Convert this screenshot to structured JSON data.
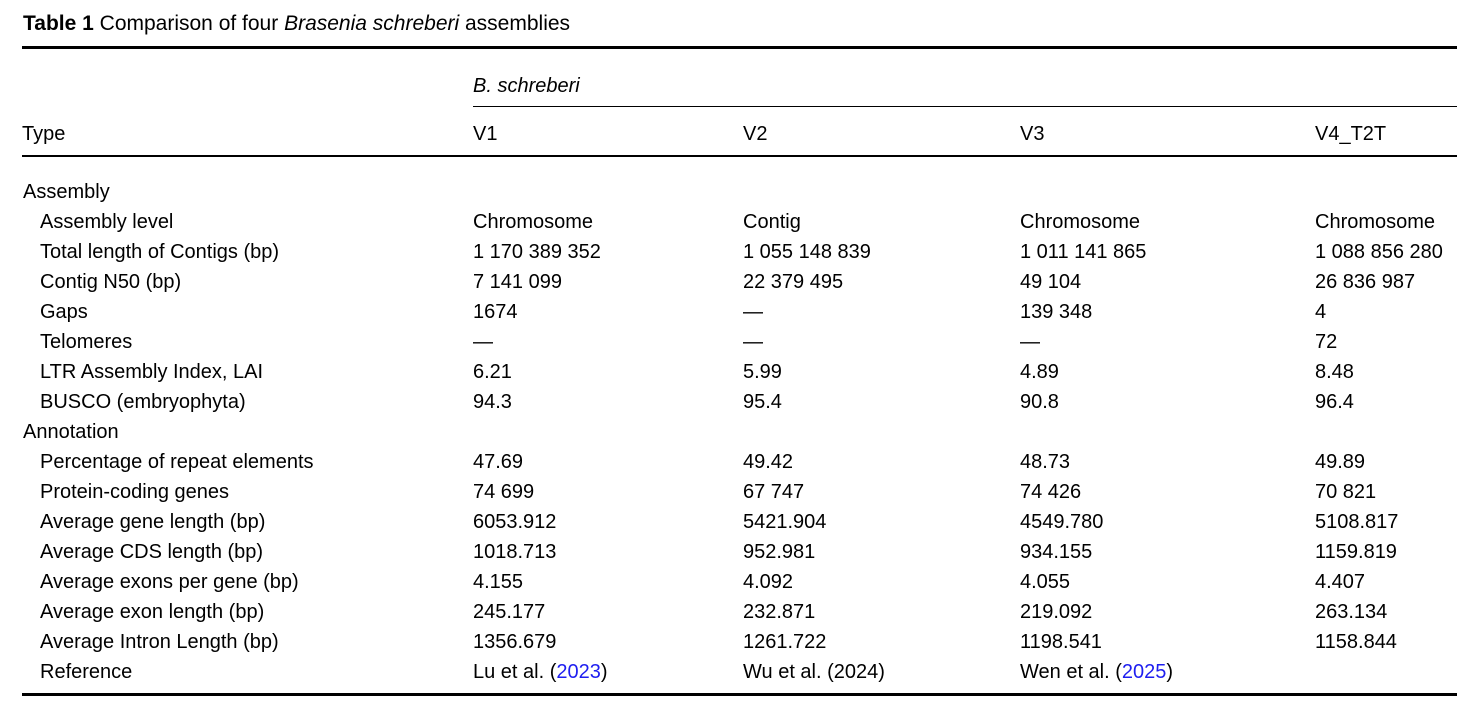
{
  "caption": {
    "label": "Table 1",
    "text_before_species": " Comparison of four ",
    "species": "Brasenia schreberi",
    "text_after_species": " assemblies"
  },
  "table": {
    "spanner": "B. schreberi",
    "columns": [
      "Type",
      "V1",
      "V2",
      "V3",
      "V4_T2T"
    ],
    "rows": [
      {
        "type": "section",
        "label": "Assembly"
      },
      {
        "type": "data",
        "label": "Assembly level",
        "values": [
          "Chromosome",
          "Contig",
          "Chromosome",
          "Chromosome"
        ]
      },
      {
        "type": "data",
        "label": "Total length of Contigs (bp)",
        "values": [
          "1 170 389 352",
          "1 055 148 839",
          "1 011 141 865",
          "1 088 856 280"
        ]
      },
      {
        "type": "data",
        "label": "Contig N50 (bp)",
        "values": [
          "7 141 099",
          "22 379 495",
          "49 104",
          "26 836 987"
        ]
      },
      {
        "type": "data",
        "label": "Gaps",
        "values": [
          "1674",
          "—",
          "139 348",
          "4"
        ]
      },
      {
        "type": "data",
        "label": "Telomeres",
        "values": [
          "—",
          "—",
          "—",
          "72"
        ]
      },
      {
        "type": "data",
        "label": "LTR Assembly Index, LAI",
        "values": [
          "6.21",
          "5.99",
          "4.89",
          "8.48"
        ]
      },
      {
        "type": "data",
        "label": "BUSCO (embryophyta)",
        "values": [
          "94.3",
          "95.4",
          "90.8",
          "96.4"
        ]
      },
      {
        "type": "section",
        "label": "Annotation"
      },
      {
        "type": "data",
        "label": "Percentage of repeat elements",
        "values": [
          "47.69",
          "49.42",
          "48.73",
          "49.89"
        ]
      },
      {
        "type": "data",
        "label": "Protein-coding genes",
        "values": [
          "74 699",
          "67 747",
          "74 426",
          "70 821"
        ]
      },
      {
        "type": "data",
        "label": "Average gene length (bp)",
        "values": [
          "6053.912",
          "5421.904",
          "4549.780",
          "5108.817"
        ]
      },
      {
        "type": "data",
        "label": "Average CDS length (bp)",
        "values": [
          "1018.713",
          "952.981",
          "934.155",
          "1159.819"
        ]
      },
      {
        "type": "data",
        "label": "Average exons per gene (bp)",
        "values": [
          "4.155",
          "4.092",
          "4.055",
          "4.407"
        ]
      },
      {
        "type": "data",
        "label": "Average exon length (bp)",
        "values": [
          "245.177",
          "232.871",
          "219.092",
          "263.134"
        ]
      },
      {
        "type": "data",
        "label": "Average Intron Length (bp)",
        "values": [
          "1356.679",
          "1261.722",
          "1198.541",
          "1158.844"
        ]
      },
      {
        "type": "reference",
        "label": "Reference",
        "values": [
          {
            "prefix": "Lu et al. (",
            "year": "2023",
            "suffix": ")",
            "year_link": true
          },
          {
            "prefix": "Wu et al. (",
            "year": "2024",
            "suffix": ")",
            "year_link": false
          },
          {
            "prefix": "Wen et al. (",
            "year": "2025",
            "suffix": ")",
            "year_link": true
          },
          null
        ]
      }
    ]
  },
  "colors": {
    "text": "#000000",
    "rule": "#000000",
    "link": "#1e1ef0"
  }
}
